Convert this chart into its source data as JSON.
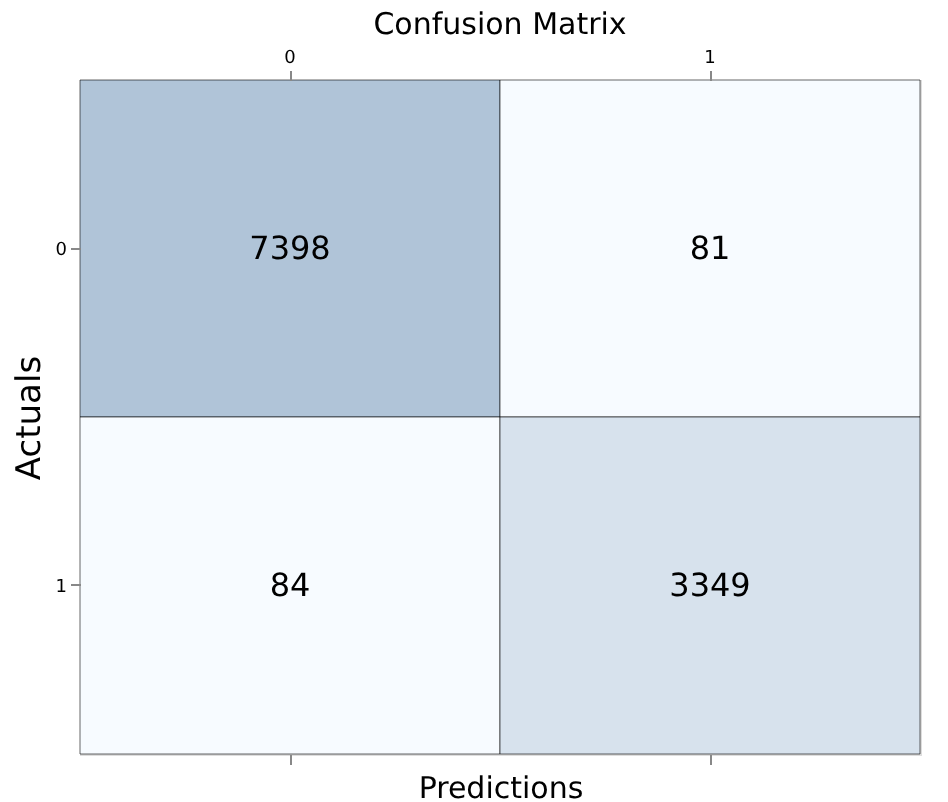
{
  "chart_data": {
    "type": "heatmap",
    "title": "Confusion Matrix",
    "xlabel": "Predictions",
    "ylabel": "Actuals",
    "categories": [
      "0",
      "1"
    ],
    "y_categories": [
      "0",
      "1"
    ],
    "cells": [
      [
        7398,
        81
      ],
      [
        84,
        3349
      ]
    ],
    "data_labels": true
  }
}
